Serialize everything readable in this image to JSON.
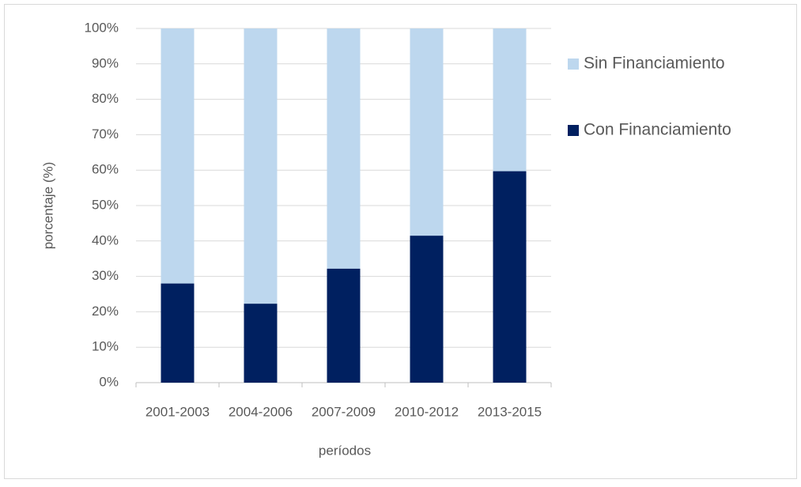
{
  "chart_data": {
    "type": "stacked_bar",
    "ylabel": "porcentaje (%)",
    "xlabel": "períodos",
    "categories": [
      "2001-2003",
      "2004-2006",
      "2007-2009",
      "2010-2012",
      "2013-2015"
    ],
    "series": [
      {
        "name": "Con Financiamiento",
        "color": "#002060",
        "values": [
          28,
          22.3,
          32.2,
          41.5,
          59.7
        ]
      },
      {
        "name": "Sin Financiamiento",
        "color": "#bdd7ee",
        "values": [
          72,
          77.7,
          67.8,
          58.5,
          40.3
        ]
      }
    ],
    "ylim": [
      0,
      100
    ],
    "yticks": [
      {
        "value": 0,
        "label": "0%"
      },
      {
        "value": 10,
        "label": "10%"
      },
      {
        "value": 20,
        "label": "20%"
      },
      {
        "value": 30,
        "label": "30%"
      },
      {
        "value": 40,
        "label": "40%"
      },
      {
        "value": 50,
        "label": "50%"
      },
      {
        "value": 60,
        "label": "60%"
      },
      {
        "value": 70,
        "label": "70%"
      },
      {
        "value": 80,
        "label": "80%"
      },
      {
        "value": 90,
        "label": "90%"
      },
      {
        "value": 100,
        "label": "100%"
      }
    ],
    "grid": true,
    "legend": "right"
  }
}
